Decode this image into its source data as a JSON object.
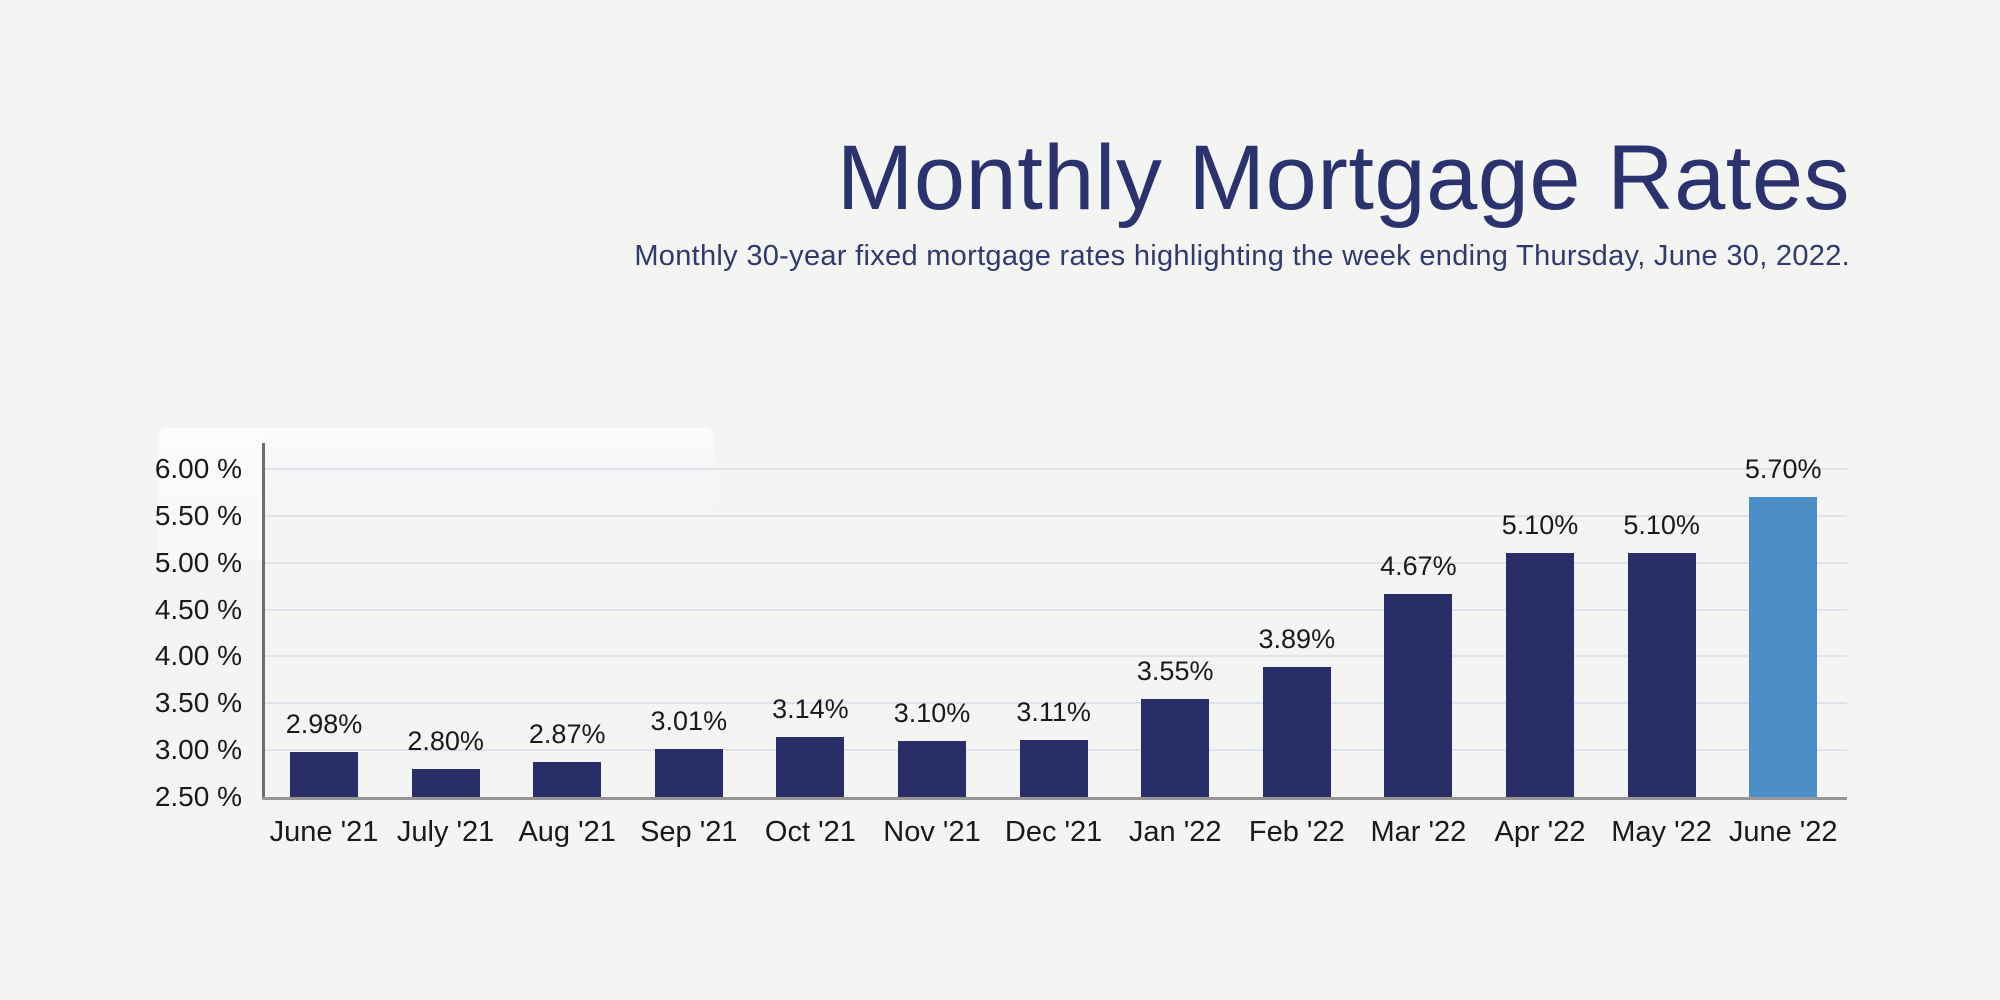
{
  "page": {
    "background": "#f4f4f3"
  },
  "header": {
    "title": "Monthly Mortgage Rates",
    "subtitle": "Monthly 30-year fixed mortgage rates highlighting the week ending Thursday, June 30, 2022."
  },
  "chart_data": {
    "type": "bar",
    "title": "Monthly Mortgage Rates",
    "xlabel": "",
    "ylabel": "",
    "categories": [
      "June '21",
      "July '21",
      "Aug '21",
      "Sep '21",
      "Oct '21",
      "Nov '21",
      "Dec '21",
      "Jan '22",
      "Feb '22",
      "Mar '22",
      "Apr '22",
      "May '22",
      "June '22"
    ],
    "values": [
      2.98,
      2.8,
      2.87,
      3.01,
      3.14,
      3.1,
      3.11,
      3.55,
      3.89,
      4.67,
      5.1,
      5.1,
      5.7
    ],
    "bar_labels": [
      "2.98%",
      "2.80%",
      "2.87%",
      "3.01%",
      "3.14%",
      "3.10%",
      "3.11%",
      "3.55%",
      "3.89%",
      "4.67%",
      "5.10%",
      "5.10%",
      "5.70%"
    ],
    "highlight_index": 12,
    "y_ticks": [
      {
        "label": "6.00 %",
        "value": 6.0
      },
      {
        "label": "5.50 %",
        "value": 5.5
      },
      {
        "label": "5.00 %",
        "value": 5.0
      },
      {
        "label": "4.50 %",
        "value": 4.5
      },
      {
        "label": "4.00 %",
        "value": 4.0
      },
      {
        "label": "3.50 %",
        "value": 3.5
      },
      {
        "label": "3.00 %",
        "value": 3.0
      },
      {
        "label": "2.50 %",
        "value": 2.5
      }
    ],
    "ylim": [
      2.5,
      6.27
    ],
    "grid": true,
    "legend": "none",
    "colors": {
      "bar": "#292e68",
      "highlight_bar": "#4c8ec8",
      "gridline": "#dce2ee",
      "y_axis_line": "#6e6e6e",
      "x_axis_line": "#969696",
      "tick_label": "#1a1a1a",
      "title": "#2b336f",
      "subtitle": "#2f3a6d"
    }
  }
}
